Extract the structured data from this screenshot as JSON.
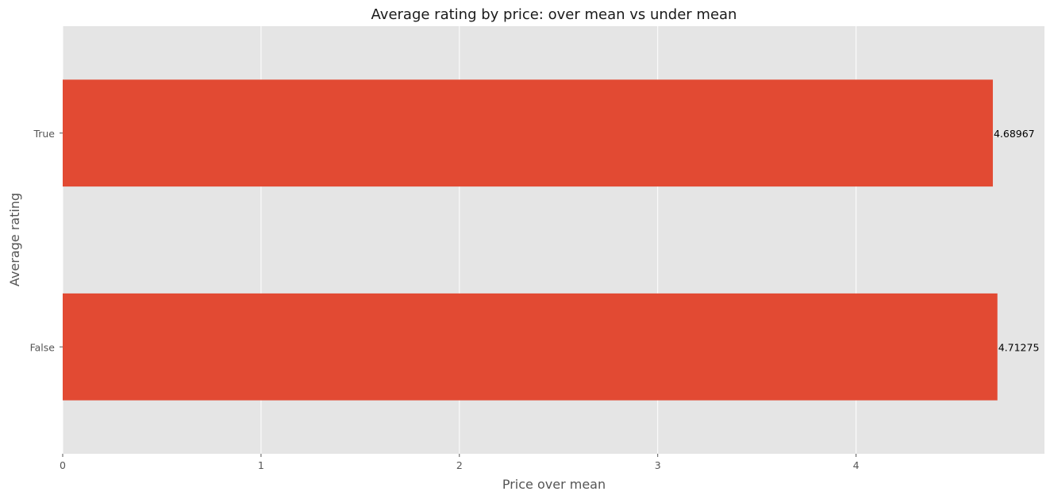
{
  "chart_data": {
    "type": "bar",
    "orientation": "horizontal",
    "title": "Average rating by price: over mean vs under mean",
    "xlabel": "Price over mean",
    "ylabel": "Average rating",
    "categories": [
      "True",
      "False"
    ],
    "values": [
      4.68967,
      4.71275
    ],
    "value_labels": [
      "4.68967",
      "4.71275"
    ],
    "xlim": [
      0,
      4.95
    ],
    "xticks": [
      0,
      1,
      2,
      3,
      4
    ],
    "grid": true,
    "bar_color": "#E24A33",
    "background_color": "#E5E5E5",
    "grid_color": "#FFFFFF"
  }
}
